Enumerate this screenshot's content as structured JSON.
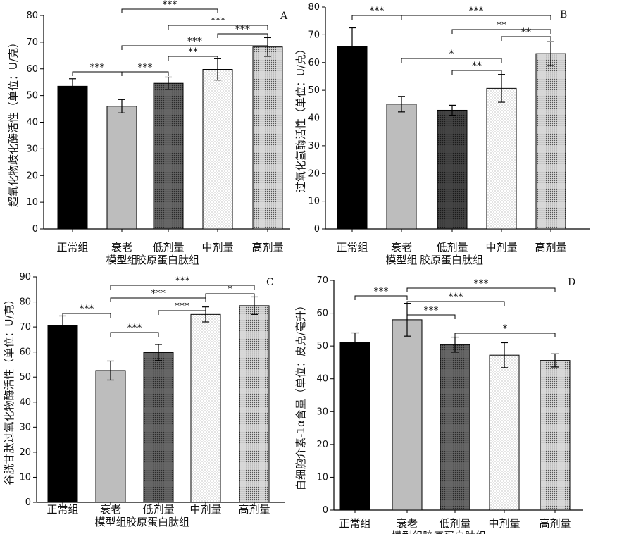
{
  "chart_data": [
    {
      "panel": "A",
      "type": "bar",
      "ylabel": "超氧化物歧化酶活性（单位：U/克）",
      "ylim": [
        0,
        80
      ],
      "yticks": [
        0,
        10,
        20,
        30,
        40,
        50,
        60,
        70,
        80
      ],
      "categories": [
        "正常组",
        "衰老模型组",
        "低剂量",
        "中剂量",
        "高剂量"
      ],
      "category_labels": [
        {
          "lines": [
            "正常组"
          ]
        },
        {
          "lines": [
            "衰老",
            "模型组"
          ]
        },
        {
          "lines": [
            "低剂量",
            "胶原蛋白肽组"
          ]
        },
        {
          "lines": [
            "中剂量"
          ]
        },
        {
          "lines": [
            "高剂量"
          ]
        }
      ],
      "values": [
        53.5,
        46.0,
        54.6,
        59.8,
        68.2
      ],
      "errors": [
        2.8,
        2.5,
        2.3,
        4.0,
        3.5
      ],
      "significance": [
        {
          "from": 0,
          "to": 1,
          "label": "***"
        },
        {
          "from": 1,
          "to": 2,
          "label": "***"
        },
        {
          "from": 1,
          "to": 3,
          "label": "***"
        },
        {
          "from": 1,
          "to": 4,
          "label": "***"
        },
        {
          "from": 2,
          "to": 3,
          "label": "**"
        },
        {
          "from": 2,
          "to": 4,
          "label": "***"
        },
        {
          "from": 3,
          "to": 4,
          "label": "***"
        }
      ]
    },
    {
      "panel": "B",
      "type": "bar",
      "ylabel": "过氧化氢酶活性（单位：U/克）",
      "ylim": [
        0,
        80
      ],
      "yticks": [
        0,
        10,
        20,
        30,
        40,
        50,
        60,
        70,
        80
      ],
      "categories": [
        "正常组",
        "衰老模型组",
        "低剂量",
        "中剂量",
        "高剂量"
      ],
      "category_labels": [
        {
          "lines": [
            "正常组"
          ]
        },
        {
          "lines": [
            "衰老",
            "模型组"
          ]
        },
        {
          "lines": [
            "低剂量",
            "胶原蛋白肽组"
          ]
        },
        {
          "lines": [
            "中剂量"
          ]
        },
        {
          "lines": [
            "高剂量"
          ]
        }
      ],
      "values": [
        65.7,
        45.0,
        42.8,
        50.7,
        63.2
      ],
      "errors": [
        6.8,
        2.8,
        1.8,
        5.0,
        4.3
      ],
      "significance": [
        {
          "from": 0,
          "to": 1,
          "label": "***"
        },
        {
          "from": 1,
          "to": 3,
          "label": "*"
        },
        {
          "from": 1,
          "to": 4,
          "label": "***"
        },
        {
          "from": 2,
          "to": 3,
          "label": "**"
        },
        {
          "from": 2,
          "to": 4,
          "label": "**"
        },
        {
          "from": 3,
          "to": 4,
          "label": "**"
        }
      ]
    },
    {
      "panel": "C",
      "type": "bar",
      "ylabel": "谷胱甘肽过氧化物酶活性（单位：U/克）",
      "ylim": [
        0,
        90
      ],
      "yticks": [
        0,
        10,
        20,
        30,
        40,
        50,
        60,
        70,
        80,
        90
      ],
      "categories": [
        "正常组",
        "衰老模型组",
        "低剂量",
        "中剂量",
        "高剂量"
      ],
      "category_labels": [
        {
          "lines": [
            "正常组"
          ]
        },
        {
          "lines": [
            "衰老",
            "模型组"
          ]
        },
        {
          "lines": [
            "低剂量",
            "胶原蛋白肽组"
          ]
        },
        {
          "lines": [
            "中剂量"
          ]
        },
        {
          "lines": [
            "高剂量"
          ]
        }
      ],
      "values": [
        70.6,
        52.6,
        59.8,
        75.0,
        78.5
      ],
      "errors": [
        3.8,
        3.8,
        3.2,
        3.0,
        3.5
      ],
      "significance": [
        {
          "from": 0,
          "to": 1,
          "label": "***"
        },
        {
          "from": 1,
          "to": 2,
          "label": "***"
        },
        {
          "from": 1,
          "to": 3,
          "label": "***"
        },
        {
          "from": 1,
          "to": 4,
          "label": "***"
        },
        {
          "from": 2,
          "to": 3,
          "label": "***"
        },
        {
          "from": 3,
          "to": 4,
          "label": "*"
        }
      ]
    },
    {
      "panel": "D",
      "type": "bar",
      "ylabel": "白细胞介素-1α含量（单位：皮克/毫升）",
      "ylim": [
        0,
        70
      ],
      "yticks": [
        0,
        10,
        20,
        30,
        40,
        50,
        60,
        70
      ],
      "categories": [
        "正常组",
        "衰老模型组",
        "低剂量",
        "中剂量",
        "高剂量"
      ],
      "category_labels": [
        {
          "lines": [
            "正常组"
          ]
        },
        {
          "lines": [
            "衰老",
            "模型组"
          ]
        },
        {
          "lines": [
            "低剂量",
            "胶原蛋白肽组"
          ]
        },
        {
          "lines": [
            "中剂量"
          ]
        },
        {
          "lines": [
            "高剂量"
          ]
        }
      ],
      "values": [
        51.2,
        58.0,
        50.4,
        47.2,
        45.6
      ],
      "errors": [
        2.8,
        5.0,
        2.3,
        3.8,
        2.0
      ],
      "significance": [
        {
          "from": 0,
          "to": 1,
          "label": "***"
        },
        {
          "from": 1,
          "to": 2,
          "label": "***"
        },
        {
          "from": 1,
          "to": 3,
          "label": "***"
        },
        {
          "from": 1,
          "to": 4,
          "label": "***"
        },
        {
          "from": 2,
          "to": 4,
          "label": "*"
        }
      ]
    }
  ]
}
